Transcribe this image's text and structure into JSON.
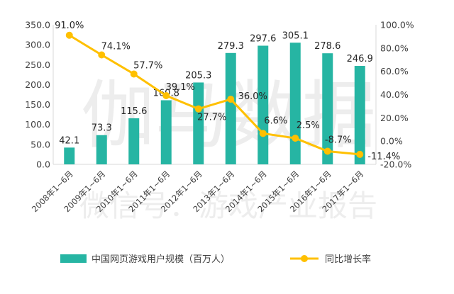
{
  "watermark": {
    "line1": "伽马数据",
    "line2": "微信号：游戏产业报告"
  },
  "chart_data": {
    "type": "bar",
    "categories": [
      "2008年1~6月",
      "2009年1~6月",
      "2010年1~6月",
      "2011年1~6月",
      "2012年1~6月",
      "2013年1~6月",
      "2014年1~6月",
      "2015年1~6月",
      "2016年1~6月",
      "2017年1~6月"
    ],
    "series": [
      {
        "name": "中国网页游戏用户规模（百万人）",
        "chart_type": "bar",
        "axis": "left",
        "values": [
          42.1,
          73.3,
          115.6,
          160.8,
          205.3,
          279.3,
          297.6,
          305.1,
          278.6,
          246.9
        ],
        "labels": [
          "42.1",
          "73.3",
          "115.6",
          "160.8",
          "205.3",
          "279.3",
          "297.6",
          "305.1",
          "278.6",
          "246.9"
        ],
        "color": "#26b5a3"
      },
      {
        "name": "同比增长率",
        "chart_type": "line",
        "axis": "right",
        "values": [
          91.0,
          74.1,
          57.7,
          39.1,
          27.7,
          36.0,
          6.6,
          2.5,
          -8.7,
          -11.4
        ],
        "labels": [
          "91.0%",
          "74.1%",
          "57.7%",
          "39.1%",
          "27.7%",
          "36.0%",
          "6.6%",
          "2.5%",
          "-8.7%",
          "-11.4%"
        ],
        "color": "#ffc000"
      }
    ],
    "y_left": {
      "ylim": [
        0,
        350
      ],
      "ticks": [
        0,
        50,
        100,
        150,
        200,
        250,
        300,
        350
      ],
      "tick_labels": [
        "0.0",
        "50.0",
        "100.0",
        "150.0",
        "200.0",
        "250.0",
        "300.0",
        "350.0"
      ]
    },
    "y_right": {
      "ylim": [
        -20,
        100
      ],
      "ticks": [
        -20,
        0,
        20,
        40,
        60,
        80,
        100
      ],
      "tick_labels": [
        "-20.0%",
        "0.0%",
        "20.0%",
        "40.0%",
        "60.0%",
        "80.0%",
        "100.0%"
      ]
    },
    "grid": false,
    "legend_position": "bottom"
  }
}
